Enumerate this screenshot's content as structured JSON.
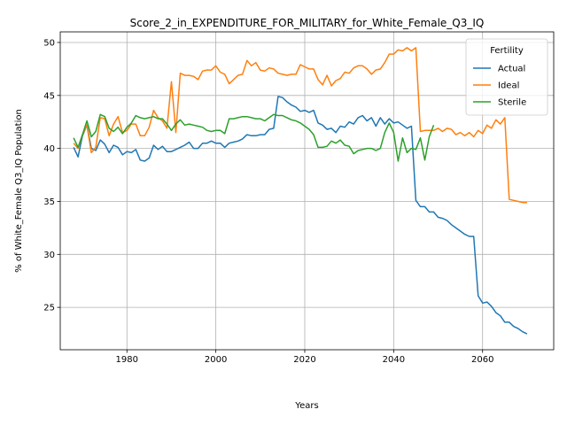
{
  "chart_data": {
    "type": "line",
    "title": "Score_2_in_EXPENDITURE_FOR_MILITARY_for_White_Female_Q3_IQ",
    "xlabel": "Years",
    "ylabel": "% of White_Female Q3_IQ Population",
    "xlim": [
      1965,
      2076
    ],
    "ylim": [
      21,
      51
    ],
    "xticks": [
      1980,
      2000,
      2020,
      2040,
      2060
    ],
    "yticks": [
      25,
      30,
      35,
      40,
      45,
      50
    ],
    "grid": true,
    "legend": {
      "title": "Fertility",
      "placement": "top-right"
    },
    "series": [
      {
        "name": "Actual",
        "color": "#1f77b4",
        "x": [
          1968,
          1969,
          1970,
          1971,
          1972,
          1973,
          1974,
          1975,
          1976,
          1977,
          1978,
          1979,
          1980,
          1981,
          1982,
          1983,
          1984,
          1985,
          1986,
          1987,
          1988,
          1989,
          1990,
          1991,
          1992,
          1993,
          1994,
          1995,
          1996,
          1997,
          1998,
          1999,
          2000,
          2001,
          2002,
          2003,
          2004,
          2005,
          2006,
          2007,
          2008,
          2009,
          2010,
          2011,
          2012,
          2013,
          2014,
          2015,
          2016,
          2017,
          2018,
          2019,
          2020,
          2021,
          2022,
          2023,
          2024,
          2025,
          2026,
          2027,
          2028,
          2029,
          2030,
          2031,
          2032,
          2033,
          2034,
          2035,
          2036,
          2037,
          2038,
          2039,
          2040,
          2041,
          2042,
          2043,
          2044,
          2045,
          2046,
          2047,
          2048,
          2049,
          2050,
          2051,
          2052,
          2053,
          2054,
          2055,
          2056,
          2057,
          2058,
          2059,
          2060,
          2061,
          2062,
          2063,
          2064,
          2065,
          2066,
          2067,
          2068,
          2069,
          2070
        ],
        "values": [
          40.1,
          39.2,
          41.2,
          42.2,
          40.0,
          39.8,
          40.8,
          40.4,
          39.6,
          40.3,
          40.1,
          39.4,
          39.7,
          39.6,
          39.9,
          38.9,
          38.8,
          39.1,
          40.3,
          39.9,
          40.2,
          39.7,
          39.7,
          39.9,
          40.1,
          40.3,
          40.6,
          40.0,
          40.0,
          40.5,
          40.5,
          40.7,
          40.5,
          40.5,
          40.1,
          40.5,
          40.6,
          40.7,
          40.9,
          41.3,
          41.2,
          41.2,
          41.3,
          41.3,
          41.8,
          41.9,
          44.9,
          44.8,
          44.4,
          44.1,
          43.9,
          43.5,
          43.6,
          43.4,
          43.6,
          42.4,
          42.2,
          41.8,
          41.9,
          41.5,
          42.1,
          42.0,
          42.5,
          42.3,
          42.9,
          43.1,
          42.6,
          42.9,
          42.1,
          42.9,
          42.3,
          42.8,
          42.4,
          42.5,
          42.2,
          41.9,
          42.1,
          35.1,
          34.5,
          34.5,
          34.0,
          34.0,
          33.5,
          33.4,
          33.2,
          32.8,
          32.5,
          32.2,
          31.9,
          31.7,
          31.7,
          26.1,
          25.4,
          25.5,
          25.1,
          24.5,
          24.2,
          23.6,
          23.6,
          23.2,
          23.0,
          22.7,
          22.5
        ]
      },
      {
        "name": "Ideal",
        "color": "#ff7f0e",
        "x": [
          1968,
          1969,
          1970,
          1971,
          1972,
          1973,
          1974,
          1975,
          1976,
          1977,
          1978,
          1979,
          1980,
          1981,
          1982,
          1983,
          1984,
          1985,
          1986,
          1987,
          1988,
          1989,
          1990,
          1991,
          1992,
          1993,
          1994,
          1995,
          1996,
          1997,
          1998,
          1999,
          2000,
          2001,
          2002,
          2003,
          2004,
          2005,
          2006,
          2007,
          2008,
          2009,
          2010,
          2011,
          2012,
          2013,
          2014,
          2015,
          2016,
          2017,
          2018,
          2019,
          2020,
          2021,
          2022,
          2023,
          2024,
          2025,
          2026,
          2027,
          2028,
          2029,
          2030,
          2031,
          2032,
          2033,
          2034,
          2035,
          2036,
          2037,
          2038,
          2039,
          2040,
          2041,
          2042,
          2043,
          2044,
          2045,
          2046,
          2047,
          2048,
          2049,
          2050,
          2051,
          2052,
          2053,
          2054,
          2055,
          2056,
          2057,
          2058,
          2059,
          2060,
          2061,
          2062,
          2063,
          2064,
          2065,
          2066,
          2067,
          2068,
          2069,
          2070
        ],
        "values": [
          40.5,
          40.0,
          41.3,
          42.2,
          39.6,
          40.1,
          42.9,
          42.8,
          41.2,
          42.3,
          43.0,
          41.5,
          41.7,
          42.3,
          42.3,
          41.2,
          41.2,
          42.0,
          43.6,
          42.9,
          42.6,
          41.9,
          46.3,
          41.5,
          47.1,
          46.9,
          46.9,
          46.8,
          46.5,
          47.3,
          47.4,
          47.4,
          47.8,
          47.2,
          47.0,
          46.1,
          46.5,
          46.9,
          47.0,
          48.3,
          47.8,
          48.1,
          47.4,
          47.3,
          47.6,
          47.5,
          47.1,
          47.0,
          46.9,
          47.0,
          47.0,
          47.9,
          47.7,
          47.5,
          47.5,
          46.5,
          46.0,
          46.9,
          45.9,
          46.4,
          46.6,
          47.2,
          47.1,
          47.6,
          47.8,
          47.8,
          47.5,
          47.0,
          47.4,
          47.5,
          48.1,
          48.9,
          48.9,
          49.3,
          49.2,
          49.5,
          49.2,
          49.5,
          41.6,
          41.7,
          41.7,
          41.7,
          41.9,
          41.6,
          41.9,
          41.8,
          41.3,
          41.5,
          41.2,
          41.5,
          41.1,
          41.7,
          41.4,
          42.2,
          41.9,
          42.7,
          42.3,
          42.9,
          35.2,
          35.1,
          35.0,
          34.9,
          34.9
        ]
      },
      {
        "name": "Sterile",
        "color": "#2ca02c",
        "x": [
          1968,
          1969,
          1970,
          1971,
          1972,
          1973,
          1974,
          1975,
          1976,
          1977,
          1978,
          1979,
          1980,
          1981,
          1982,
          1983,
          1984,
          1985,
          1986,
          1987,
          1988,
          1989,
          1990,
          1991,
          1992,
          1993,
          1994,
          1995,
          1996,
          1997,
          1998,
          1999,
          2000,
          2001,
          2002,
          2003,
          2004,
          2005,
          2006,
          2007,
          2008,
          2009,
          2010,
          2011,
          2012,
          2013,
          2014,
          2015,
          2016,
          2017,
          2018,
          2019,
          2020,
          2021,
          2022,
          2023,
          2024,
          2025,
          2026,
          2027,
          2028,
          2029,
          2030,
          2031,
          2032,
          2033,
          2034,
          2035,
          2036,
          2037,
          2038,
          2039,
          2040,
          2041,
          2042,
          2043,
          2044,
          2045,
          2046,
          2047,
          2048,
          2049
        ],
        "values": [
          41.0,
          40.1,
          41.3,
          42.6,
          41.1,
          41.6,
          43.2,
          43.0,
          41.9,
          41.6,
          42.0,
          41.4,
          42.0,
          42.4,
          43.1,
          42.9,
          42.8,
          42.9,
          43.0,
          42.8,
          42.8,
          42.3,
          41.7,
          42.3,
          42.7,
          42.2,
          42.3,
          42.2,
          42.1,
          42.0,
          41.7,
          41.6,
          41.7,
          41.7,
          41.4,
          42.8,
          42.8,
          42.9,
          43.0,
          43.0,
          42.9,
          42.8,
          42.8,
          42.6,
          42.9,
          43.2,
          43.1,
          43.1,
          42.9,
          42.7,
          42.6,
          42.4,
          42.1,
          41.8,
          41.3,
          40.1,
          40.1,
          40.2,
          40.7,
          40.5,
          40.8,
          40.3,
          40.2,
          39.5,
          39.8,
          39.9,
          40.0,
          40.0,
          39.8,
          40.0,
          41.5,
          42.4,
          41.5,
          38.8,
          41.0,
          39.6,
          40.0,
          39.9,
          41.0,
          38.9,
          41.1,
          42.2
        ]
      }
    ]
  }
}
